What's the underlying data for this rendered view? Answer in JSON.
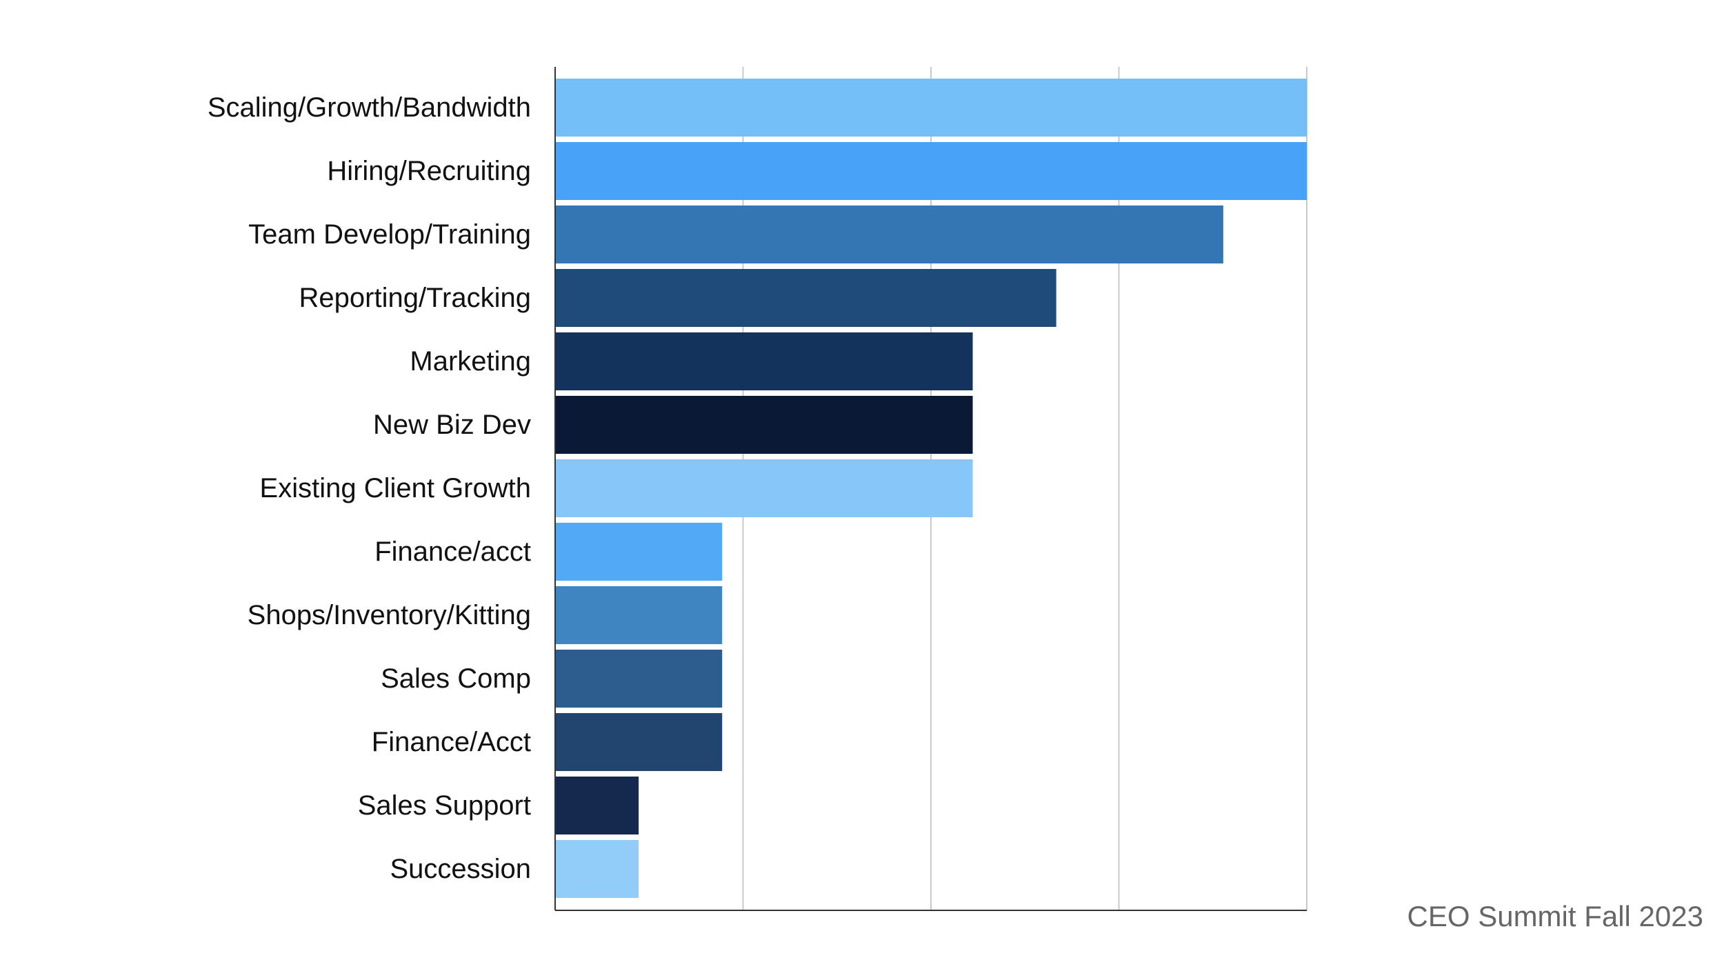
{
  "chart_data": {
    "type": "bar",
    "orientation": "horizontal",
    "categories": [
      "Scaling/Growth/Bandwidth",
      "Hiring/Recruiting",
      "Team Develop/Training",
      "Reporting/Tracking",
      "Marketing",
      "New Biz Dev",
      "Existing Client Growth",
      "Finance/acct",
      "Shops/Inventory/Kitting",
      "Sales Comp",
      "Finance/Acct",
      "Sales Support",
      "Succession"
    ],
    "values": [
      9,
      9,
      8,
      6,
      5,
      5,
      5,
      2,
      2,
      2,
      2,
      1,
      1
    ],
    "colors": [
      "#74BFF8",
      "#48A2F8",
      "#3475B3",
      "#1F4B7A",
      "#14335C",
      "#0A1A36",
      "#86C6F8",
      "#52AAF6",
      "#3F85C1",
      "#2C5D8E",
      "#21456F",
      "#15284D",
      "#92CDF9"
    ],
    "xlim": [
      0,
      9
    ],
    "x_gridlines": [
      0,
      2.25,
      4.5,
      6.75,
      9
    ],
    "grid": true,
    "title": "",
    "xlabel": "",
    "ylabel": ""
  },
  "footer": {
    "text": "CEO Summit Fall 2023"
  }
}
